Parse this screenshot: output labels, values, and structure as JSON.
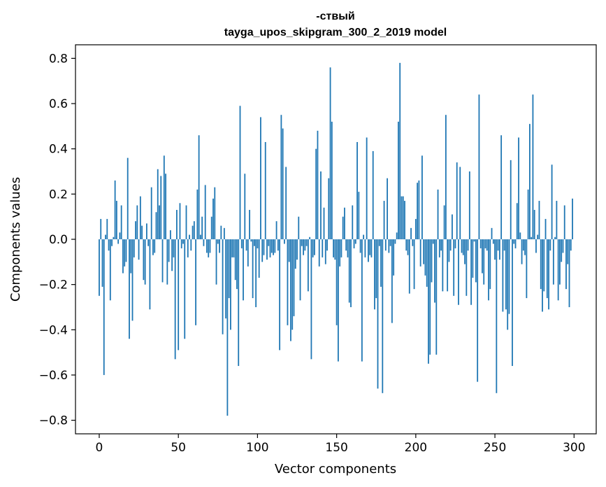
{
  "chart_data": {
    "type": "bar",
    "title_line1": "-ствый",
    "title_line2": "tayga_upos_skipgram_300_2_2019 model",
    "xlabel": "Vector components",
    "ylabel": "Components values",
    "xlim": [
      -15,
      314
    ],
    "ylim": [
      -0.86,
      0.86
    ],
    "xticks": [
      {
        "value": 0,
        "label": "0"
      },
      {
        "value": 50,
        "label": "50"
      },
      {
        "value": 100,
        "label": "100"
      },
      {
        "value": 150,
        "label": "150"
      },
      {
        "value": 200,
        "label": "200"
      },
      {
        "value": 250,
        "label": "250"
      },
      {
        "value": 300,
        "label": "300"
      }
    ],
    "yticks": [
      {
        "value": 0.8,
        "label": "0.8"
      },
      {
        "value": 0.6,
        "label": "0.6"
      },
      {
        "value": 0.4,
        "label": "0.4"
      },
      {
        "value": 0.2,
        "label": "0.2"
      },
      {
        "value": 0.0,
        "label": "0.0"
      },
      {
        "value": -0.2,
        "label": "−0.2"
      },
      {
        "value": -0.4,
        "label": "−0.4"
      },
      {
        "value": -0.6,
        "label": "−0.6"
      },
      {
        "value": -0.8,
        "label": "−0.8"
      }
    ],
    "bar_color": "#1f77b4",
    "grid": false,
    "values": [
      -0.25,
      0.09,
      -0.21,
      -0.6,
      0.02,
      0.09,
      -0.05,
      -0.27,
      -0.03,
      0.01,
      0.26,
      0.17,
      -0.02,
      0.03,
      0.15,
      -0.15,
      -0.12,
      -0.1,
      0.36,
      -0.44,
      -0.15,
      -0.36,
      -0.08,
      0.08,
      0.15,
      -0.09,
      0.19,
      0.06,
      -0.18,
      -0.2,
      0.07,
      -0.03,
      -0.31,
      0.23,
      -0.07,
      -0.06,
      0.12,
      0.31,
      0.15,
      0.28,
      -0.19,
      0.37,
      0.29,
      -0.2,
      -0.1,
      0.04,
      -0.14,
      -0.08,
      -0.53,
      0.13,
      -0.49,
      0.16,
      -0.04,
      -0.02,
      -0.44,
      0.15,
      -0.08,
      0.02,
      -0.05,
      0.06,
      0.08,
      -0.38,
      0.22,
      0.46,
      0.02,
      0.1,
      -0.03,
      0.24,
      -0.06,
      -0.08,
      -0.06,
      0.1,
      0.18,
      0.23,
      -0.2,
      -0.02,
      -0.06,
      0.06,
      -0.42,
      0.05,
      -0.35,
      -0.78,
      -0.26,
      -0.4,
      -0.08,
      -0.08,
      -0.18,
      -0.22,
      -0.56,
      0.59,
      -0.04,
      -0.27,
      0.29,
      -0.05,
      -0.12,
      0.13,
      -0.01,
      -0.26,
      -0.03,
      -0.3,
      -0.04,
      -0.17,
      0.54,
      -0.1,
      -0.07,
      0.43,
      -0.09,
      -0.03,
      -0.08,
      -0.06,
      -0.07,
      -0.06,
      0.08,
      -0.05,
      -0.49,
      0.55,
      0.49,
      -0.02,
      0.32,
      -0.38,
      -0.1,
      -0.45,
      -0.4,
      -0.34,
      -0.13,
      -0.09,
      0.1,
      -0.27,
      -0.03,
      -0.07,
      -0.05,
      -0.03,
      -0.23,
      0.01,
      -0.53,
      -0.08,
      -0.07,
      0.4,
      0.48,
      -0.12,
      0.3,
      -0.08,
      0.14,
      -0.11,
      -0.05,
      0.27,
      0.76,
      0.52,
      -0.08,
      -0.09,
      -0.38,
      -0.54,
      -0.12,
      -0.08,
      0.1,
      0.14,
      -0.05,
      -0.08,
      -0.28,
      -0.3,
      0.15,
      -0.04,
      -0.02,
      0.43,
      0.21,
      -0.06,
      -0.54,
      0.02,
      -0.08,
      0.45,
      -0.1,
      -0.07,
      -0.08,
      0.39,
      -0.31,
      -0.26,
      -0.66,
      -0.03,
      -0.21,
      -0.68,
      0.17,
      -0.05,
      0.27,
      -0.06,
      -0.03,
      -0.37,
      -0.16,
      -0.02,
      0.03,
      0.52,
      0.78,
      0.19,
      0.19,
      0.17,
      -0.05,
      -0.07,
      -0.24,
      0.05,
      -0.03,
      -0.22,
      0.09,
      0.25,
      0.26,
      -0.12,
      0.37,
      -0.11,
      -0.16,
      -0.21,
      -0.55,
      -0.51,
      -0.19,
      -0.02,
      -0.28,
      -0.51,
      0.22,
      -0.08,
      -0.05,
      -0.23,
      0.15,
      0.55,
      -0.23,
      -0.1,
      -0.05,
      0.11,
      -0.25,
      -0.04,
      0.34,
      -0.29,
      0.32,
      -0.06,
      -0.07,
      -0.11,
      -0.25,
      -0.05,
      0.3,
      -0.29,
      -0.17,
      -0.01,
      -0.19,
      -0.63,
      0.64,
      -0.04,
      -0.15,
      -0.2,
      -0.04,
      -0.05,
      -0.27,
      -0.22,
      0.05,
      -0.02,
      -0.09,
      -0.68,
      -0.05,
      -0.09,
      0.46,
      -0.32,
      -0.05,
      -0.31,
      -0.4,
      -0.33,
      0.35,
      -0.56,
      -0.02,
      -0.04,
      0.16,
      0.45,
      0.03,
      -0.11,
      -0.05,
      -0.07,
      -0.26,
      0.22,
      0.51,
      0.01,
      0.64,
      0.13,
      -0.06,
      0.02,
      0.17,
      -0.22,
      -0.32,
      -0.23,
      0.09,
      -0.26,
      -0.31,
      -0.05,
      0.33,
      -0.2,
      0.01,
      0.17,
      -0.27,
      -0.2,
      -0.1,
      -0.06,
      0.15,
      -0.22,
      -0.11,
      -0.3,
      -0.05,
      0.18
    ]
  }
}
